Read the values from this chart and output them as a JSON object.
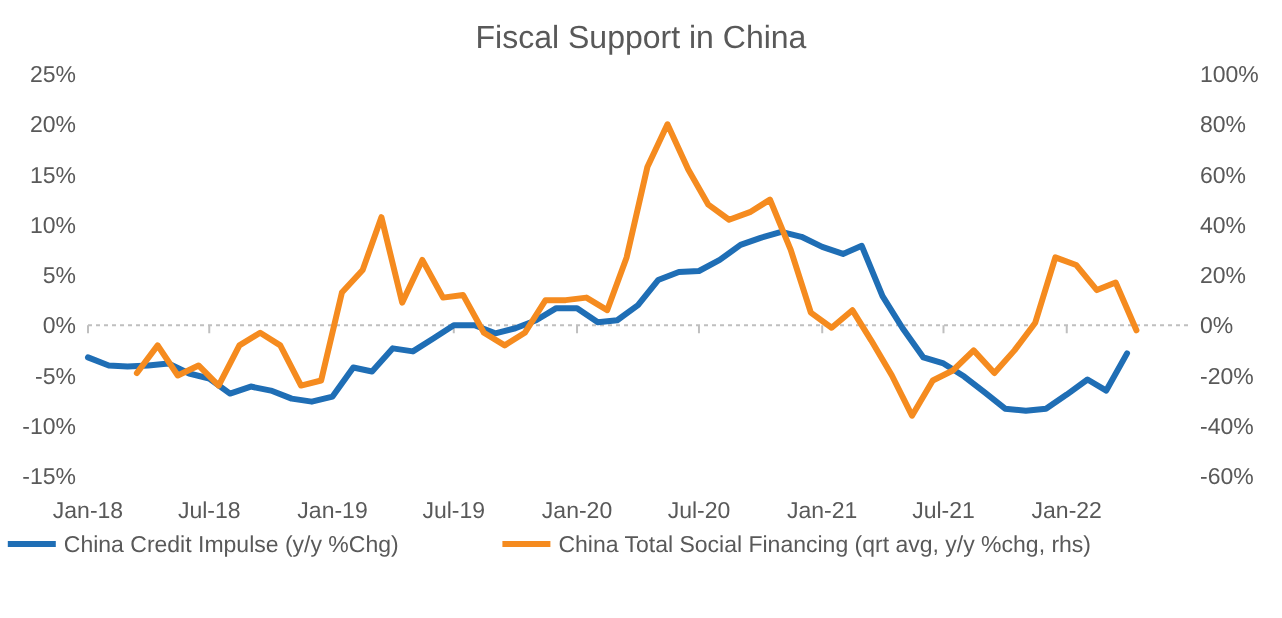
{
  "chart_data": {
    "type": "line",
    "title": "Fiscal Support in China",
    "xlim": [
      "2018-01",
      "2022-07"
    ],
    "xticks": [
      {
        "value": "2018-01",
        "label": "Jan-18"
      },
      {
        "value": "2018-07",
        "label": "Jul-18"
      },
      {
        "value": "2019-01",
        "label": "Jan-19"
      },
      {
        "value": "2019-07",
        "label": "Jul-19"
      },
      {
        "value": "2020-01",
        "label": "Jan-20"
      },
      {
        "value": "2020-07",
        "label": "Jul-20"
      },
      {
        "value": "2021-01",
        "label": "Jan-21"
      },
      {
        "value": "2021-07",
        "label": "Jul-21"
      },
      {
        "value": "2022-01",
        "label": "Jan-22"
      }
    ],
    "ylim": [
      -15,
      25
    ],
    "yticks": [
      {
        "value": -15,
        "label": "-15%"
      },
      {
        "value": -10,
        "label": "-10%"
      },
      {
        "value": -5,
        "label": "-5%"
      },
      {
        "value": 0,
        "label": "0%"
      },
      {
        "value": 5,
        "label": "5%"
      },
      {
        "value": 10,
        "label": "10%"
      },
      {
        "value": 15,
        "label": "15%"
      },
      {
        "value": 20,
        "label": "20%"
      },
      {
        "value": 25,
        "label": "25%"
      }
    ],
    "y2lim": [
      -60,
      100
    ],
    "y2ticks": [
      {
        "value": -60,
        "label": "-60%"
      },
      {
        "value": -40,
        "label": "-40%"
      },
      {
        "value": -20,
        "label": "-20%"
      },
      {
        "value": 0,
        "label": "0%"
      },
      {
        "value": 20,
        "label": "20%"
      },
      {
        "value": 40,
        "label": "40%"
      },
      {
        "value": 60,
        "label": "60%"
      },
      {
        "value": 80,
        "label": "80%"
      },
      {
        "value": 100,
        "label": "100%"
      }
    ],
    "ref_lines": [
      {
        "axis": "y",
        "value": 0,
        "color": "#bfbfbf",
        "line_style": "dotted"
      }
    ],
    "grid": false,
    "legend": "bottom",
    "marker": "none",
    "line_style": "solid",
    "series": [
      {
        "name": "China Credit Impulse (y/y %Chg)",
        "color": "#1f6eb5",
        "x": [
          "2018-01",
          "2018-02",
          "2018-03",
          "2018-04",
          "2018-05",
          "2018-06",
          "2018-07",
          "2018-08",
          "2018-09",
          "2018-10",
          "2018-11",
          "2018-12",
          "2019-01",
          "2019-02",
          "2019-03",
          "2019-04",
          "2019-05",
          "2019-06",
          "2019-07",
          "2019-08",
          "2019-09",
          "2019-10",
          "2019-11",
          "2019-12",
          "2020-01",
          "2020-02",
          "2020-03",
          "2020-04",
          "2020-05",
          "2020-06",
          "2020-07",
          "2020-08",
          "2020-09",
          "2020-10",
          "2020-11",
          "2020-12",
          "2021-01",
          "2021-02",
          "2021-03",
          "2021-04",
          "2021-05",
          "2021-06",
          "2021-07",
          "2021-08",
          "2021-09",
          "2021-10",
          "2021-11",
          "2021-12",
          "2022-01",
          "2022-02",
          "2022-03",
          "2022-04"
        ],
        "values": [
          -3.2,
          -4.0,
          -4.1,
          -4.0,
          -3.8,
          -4.8,
          -5.3,
          -6.8,
          -6.1,
          -6.5,
          -7.3,
          -7.6,
          -7.1,
          -4.2,
          -4.6,
          -2.3,
          -2.6,
          -1.3,
          0,
          0,
          -0.8,
          -0.3,
          0.5,
          1.7,
          1.7,
          0.3,
          0.5,
          2.0,
          4.5,
          5.3,
          5.4,
          6.5,
          8.0,
          8.7,
          9.3,
          8.8,
          7.8,
          7.1,
          7.9,
          2.9,
          -0.3,
          -3.2,
          -3.8,
          -5.1,
          -6.7,
          -8.3,
          -8.5,
          -8.3,
          -6.9,
          -5.4,
          -6.5,
          -2.8
        ]
      },
      {
        "name": "China Total Social Financing (qrt avg, y/y %chg, rhs)",
        "color": "#f58b1f",
        "axis": "y2",
        "x": [
          "2018-03-15",
          "2018-04-15",
          "2018-05-15",
          "2018-06-15",
          "2018-07-15",
          "2018-08-15",
          "2018-09-15",
          "2018-10-15",
          "2018-11-15",
          "2018-12-15",
          "2019-01-15",
          "2019-02-15",
          "2019-03-15",
          "2019-04-15",
          "2019-05-15",
          "2019-06-15",
          "2019-07-15",
          "2019-08-15",
          "2019-09-15",
          "2019-10-15",
          "2019-11-15",
          "2019-12-15",
          "2020-01-15",
          "2020-02-15",
          "2020-03-15",
          "2020-04-15",
          "2020-05-15",
          "2020-06-15",
          "2020-07-15",
          "2020-08-15",
          "2020-09-15",
          "2020-10-15",
          "2020-11-15",
          "2020-12-15",
          "2021-01-15",
          "2021-02-15",
          "2021-03-15",
          "2021-04-15",
          "2021-05-15",
          "2021-06-15",
          "2021-07-15",
          "2021-08-15",
          "2021-09-15",
          "2021-10-15",
          "2021-11-15",
          "2021-12-15",
          "2022-01-15",
          "2022-02-15",
          "2022-03-15",
          "2022-04-15"
        ],
        "values": [
          -19,
          -8,
          -20,
          -16,
          -24,
          -8,
          -3,
          -8,
          -24,
          -22,
          13,
          22,
          43,
          9,
          26,
          11,
          12,
          -3,
          -8,
          -3,
          10,
          10,
          11,
          6,
          27,
          63,
          80,
          62,
          48,
          42,
          45,
          50,
          30,
          5,
          -1,
          6,
          -6,
          -20,
          -36,
          -22,
          -18,
          -10,
          -19,
          -10,
          1,
          27,
          24,
          14,
          17,
          -2
        ]
      }
    ]
  }
}
